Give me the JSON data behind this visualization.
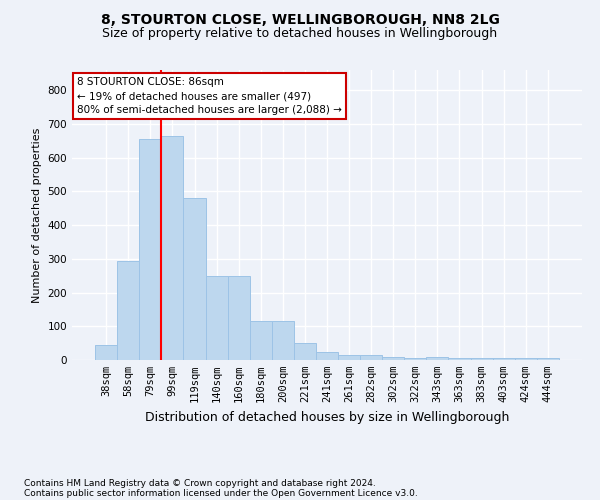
{
  "title1": "8, STOURTON CLOSE, WELLINGBOROUGH, NN8 2LG",
  "title2": "Size of property relative to detached houses in Wellingborough",
  "xlabel": "Distribution of detached houses by size in Wellingborough",
  "ylabel": "Number of detached properties",
  "footnote1": "Contains HM Land Registry data © Crown copyright and database right 2024.",
  "footnote2": "Contains public sector information licensed under the Open Government Licence v3.0.",
  "categories": [
    "38sqm",
    "58sqm",
    "79sqm",
    "99sqm",
    "119sqm",
    "140sqm",
    "160sqm",
    "180sqm",
    "200sqm",
    "221sqm",
    "241sqm",
    "261sqm",
    "282sqm",
    "302sqm",
    "322sqm",
    "343sqm",
    "363sqm",
    "383sqm",
    "403sqm",
    "424sqm",
    "444sqm"
  ],
  "values": [
    45,
    295,
    655,
    665,
    480,
    250,
    250,
    115,
    115,
    50,
    25,
    15,
    15,
    8,
    5,
    10,
    5,
    5,
    5,
    5,
    5
  ],
  "bar_color": "#bdd7ee",
  "bar_edge_color": "#9dc3e6",
  "red_line_x": 2.5,
  "annotation_title": "8 STOURTON CLOSE: 86sqm",
  "annotation_line1": "← 19% of detached houses are smaller (497)",
  "annotation_line2": "80% of semi-detached houses are larger (2,088) →",
  "annotation_box_facecolor": "#ffffff",
  "annotation_box_edgecolor": "#cc0000",
  "ylim": [
    0,
    860
  ],
  "yticks": [
    0,
    100,
    200,
    300,
    400,
    500,
    600,
    700,
    800
  ],
  "background_color": "#eef2f9",
  "grid_color": "#ffffff",
  "title1_fontsize": 10,
  "title2_fontsize": 9,
  "ylabel_fontsize": 8,
  "xlabel_fontsize": 9,
  "tick_fontsize": 7.5,
  "footnote_fontsize": 6.5,
  "annotation_fontsize": 7.5
}
